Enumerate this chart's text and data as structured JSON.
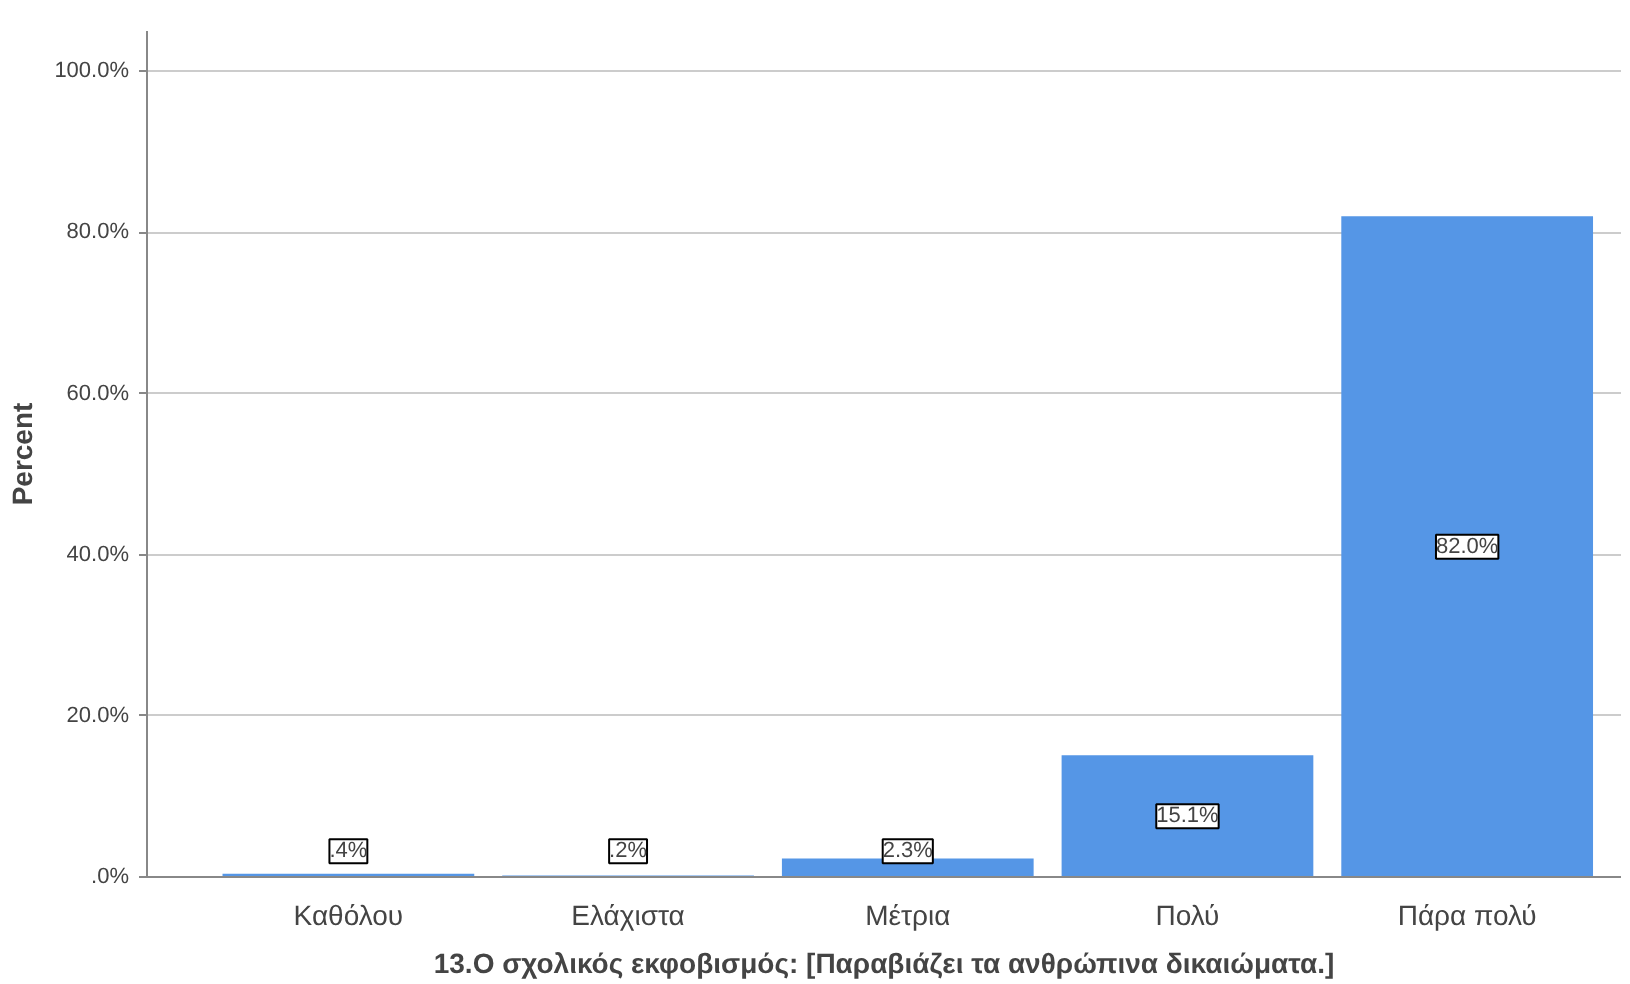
{
  "chart_data": {
    "type": "bar",
    "xlabel": "13.Ο σχολικός εκφοβισμός: [Παραβιάζει τα ανθρώπινα δικαιώματα.]",
    "ylabel": "Percent",
    "categories": [
      "Καθόλου",
      "Ελάχιστα",
      "Μέτρια",
      "Πολύ",
      "Πάρα πολύ"
    ],
    "values": [
      0.4,
      0.2,
      2.3,
      15.1,
      82.0
    ],
    "value_labels": [
      ".4%",
      ".2%",
      "2.3%",
      "15.1%",
      "82.0%"
    ],
    "color": "#5596e6",
    "ylim": [
      0,
      105
    ],
    "yticks": [
      {
        "value": 0,
        "label": ".0%"
      },
      {
        "value": 20,
        "label": "20.0%"
      },
      {
        "value": 40,
        "label": "40.0%"
      },
      {
        "value": 60,
        "label": "60.0%"
      },
      {
        "value": 80,
        "label": "80.0%"
      },
      {
        "value": 100,
        "label": "100.0%"
      }
    ],
    "grid": "y"
  }
}
